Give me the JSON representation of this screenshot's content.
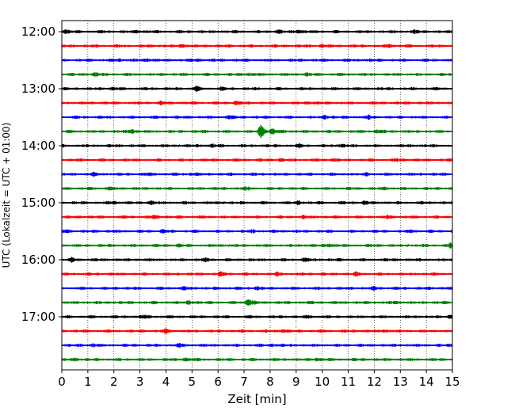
{
  "chart_data": {
    "type": "line",
    "subtype": "helicorder",
    "title": "",
    "xlabel": "Zeit  [min]",
    "ylabel": "UTC (Lokalzeit = UTC + 01:00)",
    "xlim": [
      0,
      15
    ],
    "x_ticks": [
      "0",
      "1",
      "2",
      "3",
      "4",
      "5",
      "6",
      "7",
      "8",
      "9",
      "10",
      "11",
      "12",
      "13",
      "14",
      "15"
    ],
    "y_tick_labels": [
      "12:00",
      "13:00",
      "14:00",
      "15:00",
      "16:00",
      "17:00"
    ],
    "trace_interval_min": 15,
    "grid": "vertical-dotted",
    "trace_colors": [
      "#000000",
      "#ff0000",
      "#0000ff",
      "#008000"
    ],
    "traces": [
      {
        "start": "12:00",
        "color": "#000000",
        "events": [
          [
            0.15,
            0.5
          ],
          [
            2.9,
            0.4
          ],
          [
            8.3,
            0.4
          ],
          [
            9.1,
            0.45
          ],
          [
            13.5,
            0.4
          ]
        ]
      },
      {
        "start": "12:15",
        "color": "#ff0000",
        "events": [
          [
            4.6,
            0.45
          ],
          [
            10.0,
            0.4
          ],
          [
            12.6,
            0.35
          ]
        ]
      },
      {
        "start": "12:30",
        "color": "#0000ff",
        "events": [
          [
            2.2,
            0.3
          ],
          [
            3.3,
            0.3
          ],
          [
            5.2,
            0.3
          ]
        ]
      },
      {
        "start": "12:45",
        "color": "#008000",
        "events": [
          [
            1.3,
            0.55
          ],
          [
            7.2,
            0.45
          ],
          [
            9.4,
            0.35
          ]
        ]
      },
      {
        "start": "13:00",
        "color": "#000000",
        "events": [
          [
            2.0,
            0.4
          ],
          [
            5.15,
            0.9
          ],
          [
            6.1,
            0.3
          ]
        ]
      },
      {
        "start": "13:15",
        "color": "#ff0000",
        "events": [
          [
            3.8,
            0.4
          ],
          [
            6.7,
            0.5
          ],
          [
            9.5,
            0.4
          ]
        ]
      },
      {
        "start": "13:30",
        "color": "#0000ff",
        "events": [
          [
            6.4,
            0.4
          ],
          [
            10.1,
            0.6
          ],
          [
            11.8,
            0.4
          ]
        ]
      },
      {
        "start": "13:45",
        "color": "#008000",
        "events": [
          [
            2.7,
            0.65
          ],
          [
            7.65,
            2.4
          ],
          [
            8.1,
            0.7
          ],
          [
            12.1,
            0.4
          ]
        ]
      },
      {
        "start": "14:00",
        "color": "#000000",
        "events": [
          [
            5.8,
            0.4
          ],
          [
            9.1,
            0.4
          ],
          [
            10.7,
            0.35
          ]
        ]
      },
      {
        "start": "14:15",
        "color": "#ff0000",
        "events": [
          [
            8.4,
            0.4
          ],
          [
            10.4,
            0.35
          ],
          [
            12.9,
            0.4
          ]
        ]
      },
      {
        "start": "14:30",
        "color": "#0000ff",
        "events": [
          [
            1.2,
            0.5
          ],
          [
            3.3,
            0.4
          ],
          [
            5.0,
            0.4
          ],
          [
            11.7,
            0.35
          ]
        ]
      },
      {
        "start": "14:45",
        "color": "#008000",
        "events": [
          [
            1.8,
            0.4
          ],
          [
            7.0,
            0.4
          ],
          [
            12.4,
            0.35
          ]
        ]
      },
      {
        "start": "15:00",
        "color": "#000000",
        "events": [
          [
            2.0,
            0.4
          ],
          [
            3.4,
            0.5
          ],
          [
            9.1,
            0.6
          ],
          [
            11.6,
            0.4
          ]
        ]
      },
      {
        "start": "15:15",
        "color": "#ff0000",
        "events": [
          [
            3.5,
            0.45
          ],
          [
            9.3,
            0.4
          ],
          [
            12.5,
            0.4
          ]
        ]
      },
      {
        "start": "15:30",
        "color": "#0000ff",
        "events": [
          [
            0.2,
            0.4
          ],
          [
            3.9,
            0.4
          ],
          [
            7.3,
            0.4
          ],
          [
            13.4,
            0.4
          ]
        ]
      },
      {
        "start": "15:45",
        "color": "#008000",
        "events": [
          [
            4.5,
            0.4
          ],
          [
            10.3,
            0.45
          ],
          [
            14.95,
            0.75
          ]
        ]
      },
      {
        "start": "16:00",
        "color": "#000000",
        "events": [
          [
            0.4,
            0.5
          ],
          [
            5.5,
            0.4
          ],
          [
            9.3,
            0.4
          ]
        ]
      },
      {
        "start": "16:15",
        "color": "#ff0000",
        "events": [
          [
            6.1,
            0.5
          ],
          [
            8.3,
            0.45
          ],
          [
            11.3,
            0.4
          ]
        ]
      },
      {
        "start": "16:30",
        "color": "#0000ff",
        "events": [
          [
            4.7,
            0.4
          ],
          [
            7.5,
            0.45
          ],
          [
            12.0,
            0.35
          ]
        ]
      },
      {
        "start": "16:45",
        "color": "#008000",
        "events": [
          [
            4.9,
            0.45
          ],
          [
            7.15,
            1.1
          ],
          [
            12.8,
            0.35
          ]
        ]
      },
      {
        "start": "17:00",
        "color": "#000000",
        "events": [
          [
            3.1,
            0.5
          ],
          [
            9.5,
            0.45
          ],
          [
            14.9,
            0.45
          ]
        ]
      },
      {
        "start": "17:15",
        "color": "#ff0000",
        "events": [
          [
            4.0,
            0.6
          ],
          [
            8.5,
            0.4
          ],
          [
            12.4,
            0.4
          ]
        ]
      },
      {
        "start": "17:30",
        "color": "#0000ff",
        "events": [
          [
            1.2,
            0.4
          ],
          [
            4.5,
            0.4
          ],
          [
            8.1,
            0.35
          ]
        ]
      },
      {
        "start": "17:45",
        "color": "#008000",
        "events": [
          [
            0.5,
            0.4
          ],
          [
            4.75,
            0.45
          ],
          [
            9.8,
            0.35
          ]
        ]
      }
    ]
  }
}
